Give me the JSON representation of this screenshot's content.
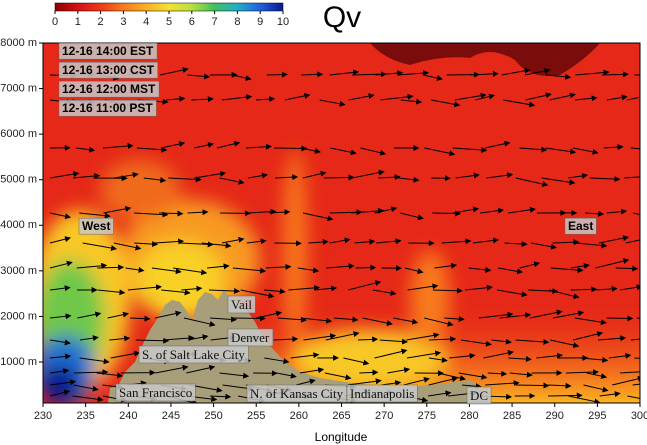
{
  "chart_data": {
    "type": "cross-section",
    "title": "Qv",
    "xlabel": "Longitude",
    "xlim": [
      230,
      300
    ],
    "xticks": [
      230,
      235,
      240,
      245,
      250,
      255,
      260,
      265,
      270,
      275,
      280,
      285,
      290,
      295,
      300
    ],
    "ylim": [
      100,
      8000
    ],
    "yticks": [
      {
        "value": 1000,
        "label": "1000 m"
      },
      {
        "value": 2000,
        "label": "2000 m"
      },
      {
        "value": 3000,
        "label": "3000 m"
      },
      {
        "value": 4000,
        "label": "4000 m"
      },
      {
        "value": 5000,
        "label": "5000 m"
      },
      {
        "value": 6000,
        "label": "6000 m"
      },
      {
        "value": 7000,
        "label": "7000 m"
      },
      {
        "value": 8000,
        "label": "8000 m"
      }
    ],
    "colorbar": {
      "lim": [
        0,
        10
      ],
      "ticks": [
        0,
        1,
        2,
        3,
        4,
        5,
        6,
        7,
        8,
        9,
        10
      ]
    },
    "times": [
      "12-16 14:00 EST",
      "12-16 13:00 CST",
      "12-16 12:00 MST",
      "12-16 11:00 PST"
    ],
    "regions": [
      "West",
      "East"
    ],
    "places": [
      "Vail",
      "Denver",
      "S. of Salt Lake City",
      "San Francisco",
      "N. of Kansas City",
      "Indianapolis",
      "DC"
    ]
  }
}
